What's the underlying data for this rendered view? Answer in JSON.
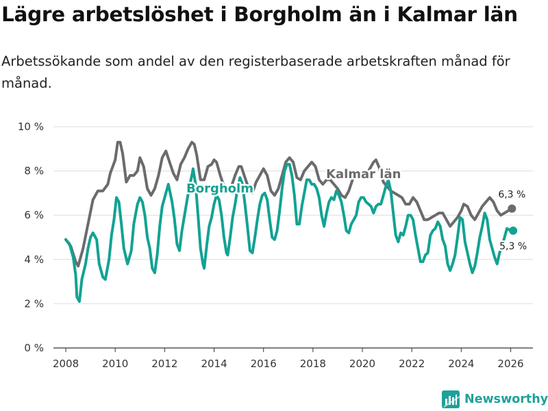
{
  "header": {
    "title": "Lägre arbetslöshet i Borgholm än i Kalmar län",
    "subtitle": "Arbetssökande som andel av den registerbaserade arbetskraften månad för månad."
  },
  "brand": {
    "name": "Newsworthy"
  },
  "colors": {
    "kalmar": "#6b6b6e",
    "borgholm": "#13a293",
    "grid": "#dddddd",
    "text": "#333333"
  },
  "chart_data": {
    "type": "line",
    "title": "Lägre arbetslöshet i Borgholm än i Kalmar län",
    "subtitle": "Arbetssökande som andel av den registerbaserade arbetskraften månad för månad.",
    "xlabel": "",
    "ylabel": "",
    "xlim": [
      2007.5,
      2026.9
    ],
    "ylim": [
      0,
      10
    ],
    "x_ticks": [
      2008,
      2010,
      2012,
      2014,
      2016,
      2018,
      2020,
      2022,
      2024,
      2026
    ],
    "x_tick_labels": [
      "2008",
      "2010",
      "2012",
      "2014",
      "2016",
      "2018",
      "2020",
      "2022",
      "2024",
      "2026"
    ],
    "y_ticks": [
      0,
      2,
      4,
      6,
      8,
      10
    ],
    "y_tick_labels": [
      "0 %",
      "2 %",
      "4 %",
      "6 %",
      "8 %",
      "10 %"
    ],
    "grid": true,
    "series": [
      {
        "name": "Kalmar län",
        "label": "Kalmar län",
        "end_label": "6,3 %",
        "points": [
          [
            2008.0,
            4.9
          ],
          [
            2008.2,
            4.6
          ],
          [
            2008.4,
            3.9
          ],
          [
            2008.5,
            3.7
          ],
          [
            2008.7,
            4.5
          ],
          [
            2008.9,
            5.6
          ],
          [
            2009.1,
            6.7
          ],
          [
            2009.3,
            7.1
          ],
          [
            2009.5,
            7.1
          ],
          [
            2009.7,
            7.4
          ],
          [
            2009.8,
            7.9
          ],
          [
            2010.0,
            8.5
          ],
          [
            2010.1,
            9.3
          ],
          [
            2010.2,
            9.3
          ],
          [
            2010.3,
            8.8
          ],
          [
            2010.45,
            7.5
          ],
          [
            2010.6,
            7.8
          ],
          [
            2010.75,
            7.8
          ],
          [
            2010.9,
            8.0
          ],
          [
            2011.0,
            8.6
          ],
          [
            2011.15,
            8.2
          ],
          [
            2011.3,
            7.2
          ],
          [
            2011.45,
            6.9
          ],
          [
            2011.6,
            7.2
          ],
          [
            2011.75,
            7.8
          ],
          [
            2011.9,
            8.6
          ],
          [
            2012.05,
            8.9
          ],
          [
            2012.2,
            8.4
          ],
          [
            2012.35,
            7.9
          ],
          [
            2012.5,
            7.6
          ],
          [
            2012.65,
            8.3
          ],
          [
            2012.8,
            8.6
          ],
          [
            2012.95,
            9.0
          ],
          [
            2013.1,
            9.3
          ],
          [
            2013.2,
            9.2
          ],
          [
            2013.3,
            8.7
          ],
          [
            2013.45,
            7.6
          ],
          [
            2013.6,
            7.6
          ],
          [
            2013.75,
            8.2
          ],
          [
            2013.9,
            8.3
          ],
          [
            2014.0,
            8.5
          ],
          [
            2014.1,
            8.4
          ],
          [
            2014.25,
            7.8
          ],
          [
            2014.4,
            7.3
          ],
          [
            2014.55,
            7.1
          ],
          [
            2014.7,
            7.3
          ],
          [
            2014.85,
            7.8
          ],
          [
            2015.0,
            8.2
          ],
          [
            2015.1,
            8.2
          ],
          [
            2015.25,
            7.7
          ],
          [
            2015.4,
            7.2
          ],
          [
            2015.55,
            7.0
          ],
          [
            2015.7,
            7.5
          ],
          [
            2015.85,
            7.8
          ],
          [
            2016.0,
            8.1
          ],
          [
            2016.15,
            7.8
          ],
          [
            2016.3,
            7.1
          ],
          [
            2016.45,
            6.9
          ],
          [
            2016.6,
            7.2
          ],
          [
            2016.75,
            7.8
          ],
          [
            2016.9,
            8.4
          ],
          [
            2017.05,
            8.6
          ],
          [
            2017.2,
            8.4
          ],
          [
            2017.35,
            7.7
          ],
          [
            2017.5,
            7.6
          ],
          [
            2017.65,
            8.0
          ],
          [
            2017.8,
            8.2
          ],
          [
            2017.95,
            8.4
          ],
          [
            2018.1,
            8.2
          ],
          [
            2018.25,
            7.6
          ],
          [
            2018.4,
            7.4
          ],
          [
            2018.55,
            7.6
          ],
          [
            2018.7,
            7.6
          ],
          [
            2018.85,
            7.4
          ],
          [
            2019.0,
            7.2
          ],
          [
            2019.15,
            6.9
          ],
          [
            2019.3,
            6.8
          ],
          [
            2019.45,
            7.1
          ],
          [
            2019.6,
            7.6
          ],
          [
            2019.75,
            7.8
          ],
          [
            2019.9,
            7.9
          ],
          [
            2020.05,
            7.8
          ],
          [
            2020.2,
            7.9
          ],
          [
            2020.35,
            8.2
          ],
          [
            2020.45,
            8.4
          ],
          [
            2020.55,
            8.5
          ],
          [
            2020.7,
            8.1
          ],
          [
            2020.85,
            7.5
          ],
          [
            2021.0,
            7.3
          ],
          [
            2021.15,
            7.1
          ],
          [
            2021.3,
            7.0
          ],
          [
            2021.45,
            6.9
          ],
          [
            2021.6,
            6.8
          ],
          [
            2021.75,
            6.5
          ],
          [
            2021.9,
            6.5
          ],
          [
            2022.05,
            6.8
          ],
          [
            2022.2,
            6.6
          ],
          [
            2022.35,
            6.2
          ],
          [
            2022.5,
            5.8
          ],
          [
            2022.65,
            5.8
          ],
          [
            2022.8,
            5.9
          ],
          [
            2022.95,
            6.0
          ],
          [
            2023.1,
            6.1
          ],
          [
            2023.25,
            6.1
          ],
          [
            2023.4,
            5.8
          ],
          [
            2023.55,
            5.5
          ],
          [
            2023.7,
            5.7
          ],
          [
            2023.85,
            5.9
          ],
          [
            2024.0,
            6.2
          ],
          [
            2024.1,
            6.5
          ],
          [
            2024.25,
            6.4
          ],
          [
            2024.4,
            6.0
          ],
          [
            2024.55,
            5.8
          ],
          [
            2024.7,
            6.1
          ],
          [
            2024.85,
            6.4
          ],
          [
            2025.0,
            6.6
          ],
          [
            2025.15,
            6.8
          ],
          [
            2025.3,
            6.6
          ],
          [
            2025.45,
            6.2
          ],
          [
            2025.6,
            6.0
          ],
          [
            2025.75,
            6.1
          ],
          [
            2025.9,
            6.2
          ],
          [
            2026.05,
            6.3
          ]
        ]
      },
      {
        "name": "Borgholm",
        "label": "Borgholm",
        "end_label": "5,3 %",
        "points": [
          [
            2008.0,
            4.9
          ],
          [
            2008.15,
            4.7
          ],
          [
            2008.3,
            4.1
          ],
          [
            2008.4,
            3.3
          ],
          [
            2008.45,
            2.3
          ],
          [
            2008.55,
            2.1
          ],
          [
            2008.65,
            3.1
          ],
          [
            2008.8,
            3.8
          ],
          [
            2008.9,
            4.5
          ],
          [
            2009.0,
            5.0
          ],
          [
            2009.1,
            5.2
          ],
          [
            2009.25,
            4.9
          ],
          [
            2009.35,
            3.8
          ],
          [
            2009.5,
            3.2
          ],
          [
            2009.6,
            3.1
          ],
          [
            2009.75,
            4.0
          ],
          [
            2009.85,
            5.1
          ],
          [
            2009.95,
            5.8
          ],
          [
            2010.05,
            6.8
          ],
          [
            2010.15,
            6.6
          ],
          [
            2010.25,
            5.6
          ],
          [
            2010.35,
            4.5
          ],
          [
            2010.5,
            3.8
          ],
          [
            2010.65,
            4.4
          ],
          [
            2010.75,
            5.6
          ],
          [
            2010.9,
            6.5
          ],
          [
            2011.0,
            6.8
          ],
          [
            2011.1,
            6.6
          ],
          [
            2011.2,
            6.0
          ],
          [
            2011.3,
            5.0
          ],
          [
            2011.4,
            4.5
          ],
          [
            2011.5,
            3.6
          ],
          [
            2011.6,
            3.4
          ],
          [
            2011.7,
            4.2
          ],
          [
            2011.8,
            5.5
          ],
          [
            2011.9,
            6.4
          ],
          [
            2012.05,
            7.0
          ],
          [
            2012.15,
            7.4
          ],
          [
            2012.3,
            6.6
          ],
          [
            2012.4,
            5.8
          ],
          [
            2012.5,
            4.7
          ],
          [
            2012.6,
            4.4
          ],
          [
            2012.7,
            5.3
          ],
          [
            2012.85,
            6.3
          ],
          [
            2013.0,
            7.3
          ],
          [
            2013.1,
            7.8
          ],
          [
            2013.15,
            8.1
          ],
          [
            2013.25,
            7.4
          ],
          [
            2013.35,
            6.0
          ],
          [
            2013.45,
            4.5
          ],
          [
            2013.55,
            3.8
          ],
          [
            2013.6,
            3.6
          ],
          [
            2013.7,
            4.6
          ],
          [
            2013.8,
            5.5
          ],
          [
            2013.9,
            5.9
          ],
          [
            2014.0,
            6.5
          ],
          [
            2014.1,
            6.9
          ],
          [
            2014.2,
            6.7
          ],
          [
            2014.3,
            6.0
          ],
          [
            2014.4,
            5.0
          ],
          [
            2014.5,
            4.3
          ],
          [
            2014.55,
            4.2
          ],
          [
            2014.65,
            5.0
          ],
          [
            2014.75,
            5.9
          ],
          [
            2014.85,
            6.5
          ],
          [
            2014.95,
            7.2
          ],
          [
            2015.05,
            7.7
          ],
          [
            2015.15,
            7.4
          ],
          [
            2015.25,
            6.5
          ],
          [
            2015.35,
            5.5
          ],
          [
            2015.45,
            4.4
          ],
          [
            2015.55,
            4.3
          ],
          [
            2015.65,
            5.0
          ],
          [
            2015.75,
            5.8
          ],
          [
            2015.85,
            6.5
          ],
          [
            2015.95,
            6.9
          ],
          [
            2016.05,
            7.0
          ],
          [
            2016.15,
            6.7
          ],
          [
            2016.25,
            5.8
          ],
          [
            2016.35,
            5.0
          ],
          [
            2016.45,
            4.9
          ],
          [
            2016.55,
            5.3
          ],
          [
            2016.65,
            6.2
          ],
          [
            2016.75,
            7.2
          ],
          [
            2016.85,
            8.0
          ],
          [
            2016.95,
            8.3
          ],
          [
            2017.05,
            8.3
          ],
          [
            2017.15,
            7.8
          ],
          [
            2017.25,
            6.9
          ],
          [
            2017.35,
            5.6
          ],
          [
            2017.45,
            5.6
          ],
          [
            2017.55,
            6.4
          ],
          [
            2017.65,
            7.0
          ],
          [
            2017.75,
            7.6
          ],
          [
            2017.85,
            7.6
          ],
          [
            2017.95,
            7.4
          ],
          [
            2018.05,
            7.4
          ],
          [
            2018.15,
            7.2
          ],
          [
            2018.25,
            6.8
          ],
          [
            2018.35,
            6.0
          ],
          [
            2018.45,
            5.5
          ],
          [
            2018.55,
            6.1
          ],
          [
            2018.65,
            6.6
          ],
          [
            2018.75,
            6.8
          ],
          [
            2018.85,
            6.7
          ],
          [
            2018.95,
            7.1
          ],
          [
            2019.05,
            6.9
          ],
          [
            2019.15,
            6.6
          ],
          [
            2019.25,
            6.0
          ],
          [
            2019.35,
            5.3
          ],
          [
            2019.45,
            5.2
          ],
          [
            2019.55,
            5.6
          ],
          [
            2019.65,
            5.8
          ],
          [
            2019.75,
            6.0
          ],
          [
            2019.85,
            6.6
          ],
          [
            2019.95,
            6.8
          ],
          [
            2020.05,
            6.8
          ],
          [
            2020.15,
            6.6
          ],
          [
            2020.25,
            6.5
          ],
          [
            2020.35,
            6.4
          ],
          [
            2020.45,
            6.1
          ],
          [
            2020.55,
            6.4
          ],
          [
            2020.65,
            6.5
          ],
          [
            2020.75,
            6.5
          ],
          [
            2020.85,
            6.9
          ],
          [
            2020.95,
            7.3
          ],
          [
            2021.05,
            7.6
          ],
          [
            2021.15,
            7.1
          ],
          [
            2021.25,
            6.1
          ],
          [
            2021.35,
            5.1
          ],
          [
            2021.45,
            4.8
          ],
          [
            2021.55,
            5.2
          ],
          [
            2021.65,
            5.1
          ],
          [
            2021.75,
            5.5
          ],
          [
            2021.85,
            6.0
          ],
          [
            2021.95,
            6.0
          ],
          [
            2022.05,
            5.8
          ],
          [
            2022.15,
            5.1
          ],
          [
            2022.25,
            4.5
          ],
          [
            2022.35,
            3.9
          ],
          [
            2022.45,
            3.9
          ],
          [
            2022.55,
            4.2
          ],
          [
            2022.65,
            4.3
          ],
          [
            2022.75,
            5.1
          ],
          [
            2022.85,
            5.3
          ],
          [
            2022.95,
            5.4
          ],
          [
            2023.05,
            5.7
          ],
          [
            2023.15,
            5.5
          ],
          [
            2023.25,
            4.9
          ],
          [
            2023.35,
            4.6
          ],
          [
            2023.45,
            3.8
          ],
          [
            2023.55,
            3.5
          ],
          [
            2023.65,
            3.8
          ],
          [
            2023.75,
            4.2
          ],
          [
            2023.85,
            5.0
          ],
          [
            2023.95,
            5.9
          ],
          [
            2024.05,
            5.8
          ],
          [
            2024.15,
            4.8
          ],
          [
            2024.25,
            4.3
          ],
          [
            2024.35,
            3.8
          ],
          [
            2024.45,
            3.4
          ],
          [
            2024.55,
            3.7
          ],
          [
            2024.65,
            4.3
          ],
          [
            2024.75,
            5.0
          ],
          [
            2024.85,
            5.5
          ],
          [
            2024.95,
            6.1
          ],
          [
            2025.05,
            5.8
          ],
          [
            2025.15,
            4.9
          ],
          [
            2025.25,
            4.5
          ],
          [
            2025.35,
            4.1
          ],
          [
            2025.45,
            3.8
          ],
          [
            2025.55,
            4.3
          ],
          [
            2025.65,
            4.6
          ],
          [
            2025.75,
            5.0
          ],
          [
            2025.85,
            5.4
          ],
          [
            2026.0,
            5.3
          ],
          [
            2026.1,
            5.3
          ]
        ]
      }
    ]
  }
}
